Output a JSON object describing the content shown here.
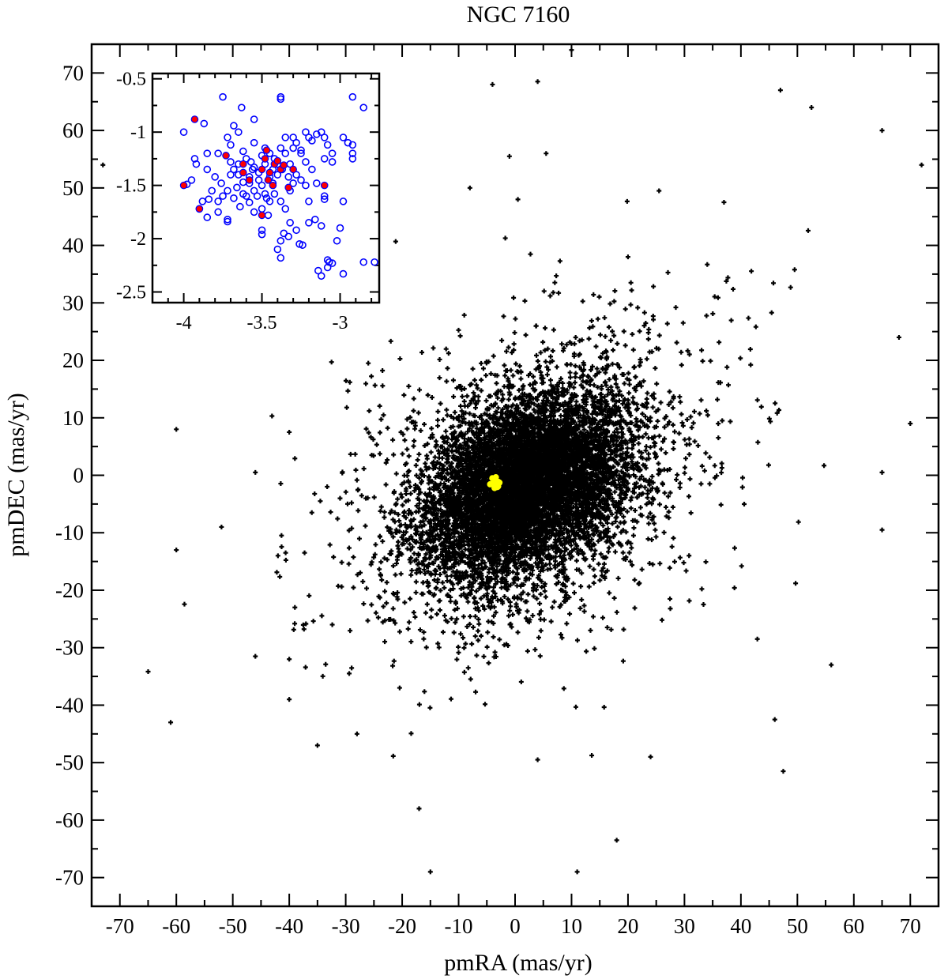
{
  "chart_data": {
    "type": "scatter",
    "title": "NGC 7160",
    "xlabel": "pmRA (mas/yr)",
    "ylabel": "pmDEC (mas/yr)",
    "xlim": [
      -75,
      75
    ],
    "ylim": [
      -75,
      75
    ],
    "x_ticks": [
      -70,
      -60,
      -50,
      -40,
      -30,
      -20,
      -10,
      0,
      10,
      20,
      30,
      40,
      50,
      60,
      70
    ],
    "y_ticks": [
      -70,
      -60,
      -50,
      -40,
      -30,
      -20,
      -10,
      0,
      10,
      20,
      30,
      40,
      50,
      60,
      70
    ],
    "grid": false,
    "legend": "none",
    "series": [
      {
        "role": "all-stars",
        "marker": "plus",
        "color": "#000000",
        "count_estimate": 9000,
        "distribution": {
          "center": [
            2,
            -2
          ],
          "sigma": [
            9,
            8
          ],
          "correlation": 0.35
        },
        "outliers": [
          [
            -73,
            54
          ],
          [
            -61,
            -43
          ],
          [
            -60,
            8
          ],
          [
            -60,
            -13
          ],
          [
            -52,
            -9
          ],
          [
            -46,
            0.5
          ],
          [
            -46,
            -31.5
          ],
          [
            -42,
            -14
          ],
          [
            -40,
            7.5
          ],
          [
            -40,
            -32
          ],
          [
            -40,
            -39
          ],
          [
            -39,
            -23
          ],
          [
            -36,
            -6.5
          ],
          [
            -35,
            -47
          ],
          [
            -31,
            -4
          ],
          [
            -28,
            -45
          ],
          [
            -26,
            19.5
          ],
          [
            -17,
            -58
          ],
          [
            -15,
            -69
          ],
          [
            -8,
            50
          ],
          [
            -4,
            68
          ],
          [
            -1,
            55.5
          ],
          [
            0.5,
            48
          ],
          [
            4,
            68.5
          ],
          [
            4,
            -49.5
          ],
          [
            5.5,
            56
          ],
          [
            10,
            74
          ],
          [
            11,
            -69
          ],
          [
            18,
            -63.5
          ],
          [
            20,
            38
          ],
          [
            24,
            -49
          ],
          [
            25.5,
            49.5
          ],
          [
            37,
            47.5
          ],
          [
            46,
            -42.5
          ],
          [
            47,
            67
          ],
          [
            47.5,
            -51.5
          ],
          [
            52.5,
            64
          ],
          [
            56,
            -33
          ],
          [
            65,
            60
          ],
          [
            65,
            -9.5
          ],
          [
            65,
            0.5
          ],
          [
            68,
            24
          ],
          [
            70,
            9
          ],
          [
            72,
            54
          ]
        ]
      },
      {
        "role": "cluster-members",
        "marker": "dot",
        "color": "#ffff00",
        "center": [
          -3.4,
          -1.4
        ],
        "spread": 0.35
      }
    ],
    "inset": {
      "xlim": [
        -4.2,
        -2.75
      ],
      "ylim": [
        -2.6,
        -0.45
      ],
      "x_ticks": [
        -4,
        -3.5,
        -3
      ],
      "y_ticks": [
        -0.5,
        -1,
        -1.5,
        -2,
        -2.5
      ],
      "series": [
        {
          "role": "open-circles",
          "marker": "circle",
          "color": "#0000ff",
          "points": [
            [
              -3.75,
              -0.67
            ],
            [
              -3.63,
              -0.77
            ],
            [
              -3.55,
              -0.88
            ],
            [
              -3.38,
              -0.67
            ],
            [
              -3.38,
              -0.69
            ],
            [
              -2.92,
              -0.67
            ],
            [
              -2.85,
              -0.77
            ],
            [
              -3.68,
              -0.94
            ],
            [
              -3.65,
              -1.0
            ],
            [
              -3.87,
              -0.92
            ],
            [
              -4.0,
              -1.0
            ],
            [
              -3.72,
              -1.05
            ],
            [
              -3.7,
              -1.12
            ],
            [
              -3.78,
              -1.2
            ],
            [
              -3.85,
              -1.2
            ],
            [
              -3.93,
              -1.25
            ],
            [
              -3.92,
              -1.3
            ],
            [
              -3.85,
              -1.35
            ],
            [
              -3.95,
              -1.45
            ],
            [
              -3.98,
              -1.49
            ],
            [
              -3.62,
              -1.18
            ],
            [
              -3.6,
              -1.25
            ],
            [
              -3.57,
              -1.28
            ],
            [
              -3.55,
              -1.33
            ],
            [
              -3.52,
              -1.38
            ],
            [
              -3.5,
              -1.22
            ],
            [
              -3.48,
              -1.15
            ],
            [
              -3.45,
              -1.2
            ],
            [
              -3.42,
              -1.25
            ],
            [
              -3.4,
              -1.3
            ],
            [
              -3.38,
              -1.15
            ],
            [
              -3.35,
              -1.2
            ],
            [
              -3.37,
              -1.35
            ],
            [
              -3.45,
              -1.42
            ],
            [
              -3.43,
              -1.48
            ],
            [
              -3.5,
              -1.5
            ],
            [
              -3.55,
              -1.55
            ],
            [
              -3.58,
              -1.48
            ],
            [
              -3.53,
              -1.6
            ],
            [
              -3.48,
              -1.58
            ],
            [
              -3.62,
              -1.47
            ],
            [
              -3.65,
              -1.4
            ],
            [
              -3.68,
              -1.35
            ],
            [
              -3.7,
              -1.28
            ],
            [
              -3.66,
              -1.52
            ],
            [
              -3.72,
              -1.55
            ],
            [
              -3.76,
              -1.48
            ],
            [
              -3.8,
              -1.42
            ],
            [
              -3.82,
              -1.55
            ],
            [
              -3.84,
              -1.63
            ],
            [
              -3.88,
              -1.65
            ],
            [
              -3.9,
              -1.72
            ],
            [
              -3.85,
              -1.8
            ],
            [
              -3.78,
              -1.75
            ],
            [
              -3.72,
              -1.82
            ],
            [
              -3.72,
              -1.84
            ],
            [
              -3.64,
              -1.7
            ],
            [
              -3.58,
              -1.66
            ],
            [
              -3.55,
              -1.75
            ],
            [
              -3.5,
              -1.92
            ],
            [
              -3.5,
              -1.96
            ],
            [
              -3.45,
              -1.65
            ],
            [
              -3.42,
              -1.58
            ],
            [
              -3.46,
              -1.78
            ],
            [
              -3.38,
              -1.65
            ],
            [
              -3.35,
              -1.72
            ],
            [
              -3.32,
              -1.55
            ],
            [
              -3.3,
              -1.48
            ],
            [
              -3.33,
              -1.42
            ],
            [
              -3.36,
              -1.95
            ],
            [
              -3.33,
              -1.98
            ],
            [
              -3.38,
              -2.02
            ],
            [
              -3.4,
              -2.1
            ],
            [
              -3.38,
              -2.18
            ],
            [
              -3.28,
              -1.92
            ],
            [
              -3.26,
              -2.05
            ],
            [
              -3.24,
              -2.06
            ],
            [
              -3.2,
              -1.85
            ],
            [
              -3.16,
              -1.82
            ],
            [
              -3.12,
              -1.88
            ],
            [
              -3.14,
              -2.3
            ],
            [
              -3.12,
              -2.35
            ],
            [
              -3.08,
              -2.2
            ],
            [
              -3.07,
              -2.22
            ],
            [
              -3.02,
              -2.02
            ],
            [
              -3.05,
              -2.23
            ],
            [
              -3.08,
              -2.27
            ],
            [
              -3.0,
              -1.9
            ],
            [
              -2.98,
              -2.33
            ],
            [
              -2.98,
              -1.65
            ],
            [
              -3.1,
              -1.6
            ],
            [
              -3.1,
              -1.63
            ],
            [
              -3.15,
              -1.48
            ],
            [
              -3.18,
              -1.35
            ],
            [
              -3.22,
              -1.28
            ],
            [
              -3.25,
              -1.2
            ],
            [
              -3.28,
              -1.1
            ],
            [
              -3.3,
              -1.05
            ],
            [
              -3.22,
              -1.0
            ],
            [
              -3.2,
              -1.05
            ],
            [
              -3.18,
              -1.08
            ],
            [
              -3.15,
              -1.02
            ],
            [
              -3.12,
              -1.0
            ],
            [
              -3.1,
              -1.05
            ],
            [
              -3.08,
              -1.12
            ],
            [
              -3.05,
              -1.2
            ],
            [
              -3.1,
              -1.25
            ],
            [
              -3.25,
              -1.17
            ],
            [
              -3.3,
              -1.15
            ],
            [
              -3.35,
              -1.05
            ],
            [
              -3.32,
              -1.3
            ],
            [
              -3.28,
              -1.4
            ],
            [
              -3.55,
              -1.1
            ],
            [
              -3.58,
              -1.42
            ],
            [
              -3.62,
              -1.58
            ],
            [
              -3.68,
              -1.62
            ],
            [
              -3.75,
              -1.6
            ],
            [
              -3.78,
              -1.65
            ],
            [
              -3.6,
              -1.6
            ],
            [
              -3.47,
              -1.62
            ],
            [
              -3.43,
              -1.35
            ],
            [
              -3.4,
              -1.4
            ],
            [
              -3.52,
              -1.45
            ],
            [
              -3.48,
              -1.3
            ],
            [
              -3.56,
              -1.35
            ],
            [
              -2.98,
              -1.05
            ],
            [
              -2.95,
              -1.1
            ],
            [
              -2.92,
              -1.12
            ],
            [
              -2.92,
              -1.2
            ],
            [
              -2.92,
              -1.25
            ],
            [
              -3.05,
              -1.28
            ],
            [
              -3.25,
              -1.45
            ],
            [
              -3.22,
              -1.5
            ],
            [
              -3.65,
              -1.3
            ],
            [
              -3.7,
              -1.4
            ],
            [
              -2.85,
              -2.22
            ],
            [
              -2.78,
              -2.22
            ],
            [
              -3.32,
              -1.85
            ],
            [
              -3.2,
              -1.65
            ],
            [
              -3.5,
              -1.72
            ]
          ]
        },
        {
          "role": "filled-dots",
          "marker": "dot",
          "color": "#ff0000",
          "points": [
            [
              -3.93,
              -0.88
            ],
            [
              -3.73,
              -1.22
            ],
            [
              -3.62,
              -1.3
            ],
            [
              -3.62,
              -1.38
            ],
            [
              -3.58,
              -1.45
            ],
            [
              -3.5,
              -1.35
            ],
            [
              -3.48,
              -1.25
            ],
            [
              -3.47,
              -1.17
            ],
            [
              -3.45,
              -1.38
            ],
            [
              -3.42,
              -1.3
            ],
            [
              -3.4,
              -1.27
            ],
            [
              -3.38,
              -1.35
            ],
            [
              -3.36,
              -1.31
            ],
            [
              -3.46,
              -1.45
            ],
            [
              -3.43,
              -1.5
            ],
            [
              -3.3,
              -1.35
            ],
            [
              -3.33,
              -1.52
            ],
            [
              -3.1,
              -1.5
            ],
            [
              -3.5,
              -1.78
            ],
            [
              -3.9,
              -1.72
            ],
            [
              -4.0,
              -1.5
            ]
          ]
        }
      ]
    }
  }
}
